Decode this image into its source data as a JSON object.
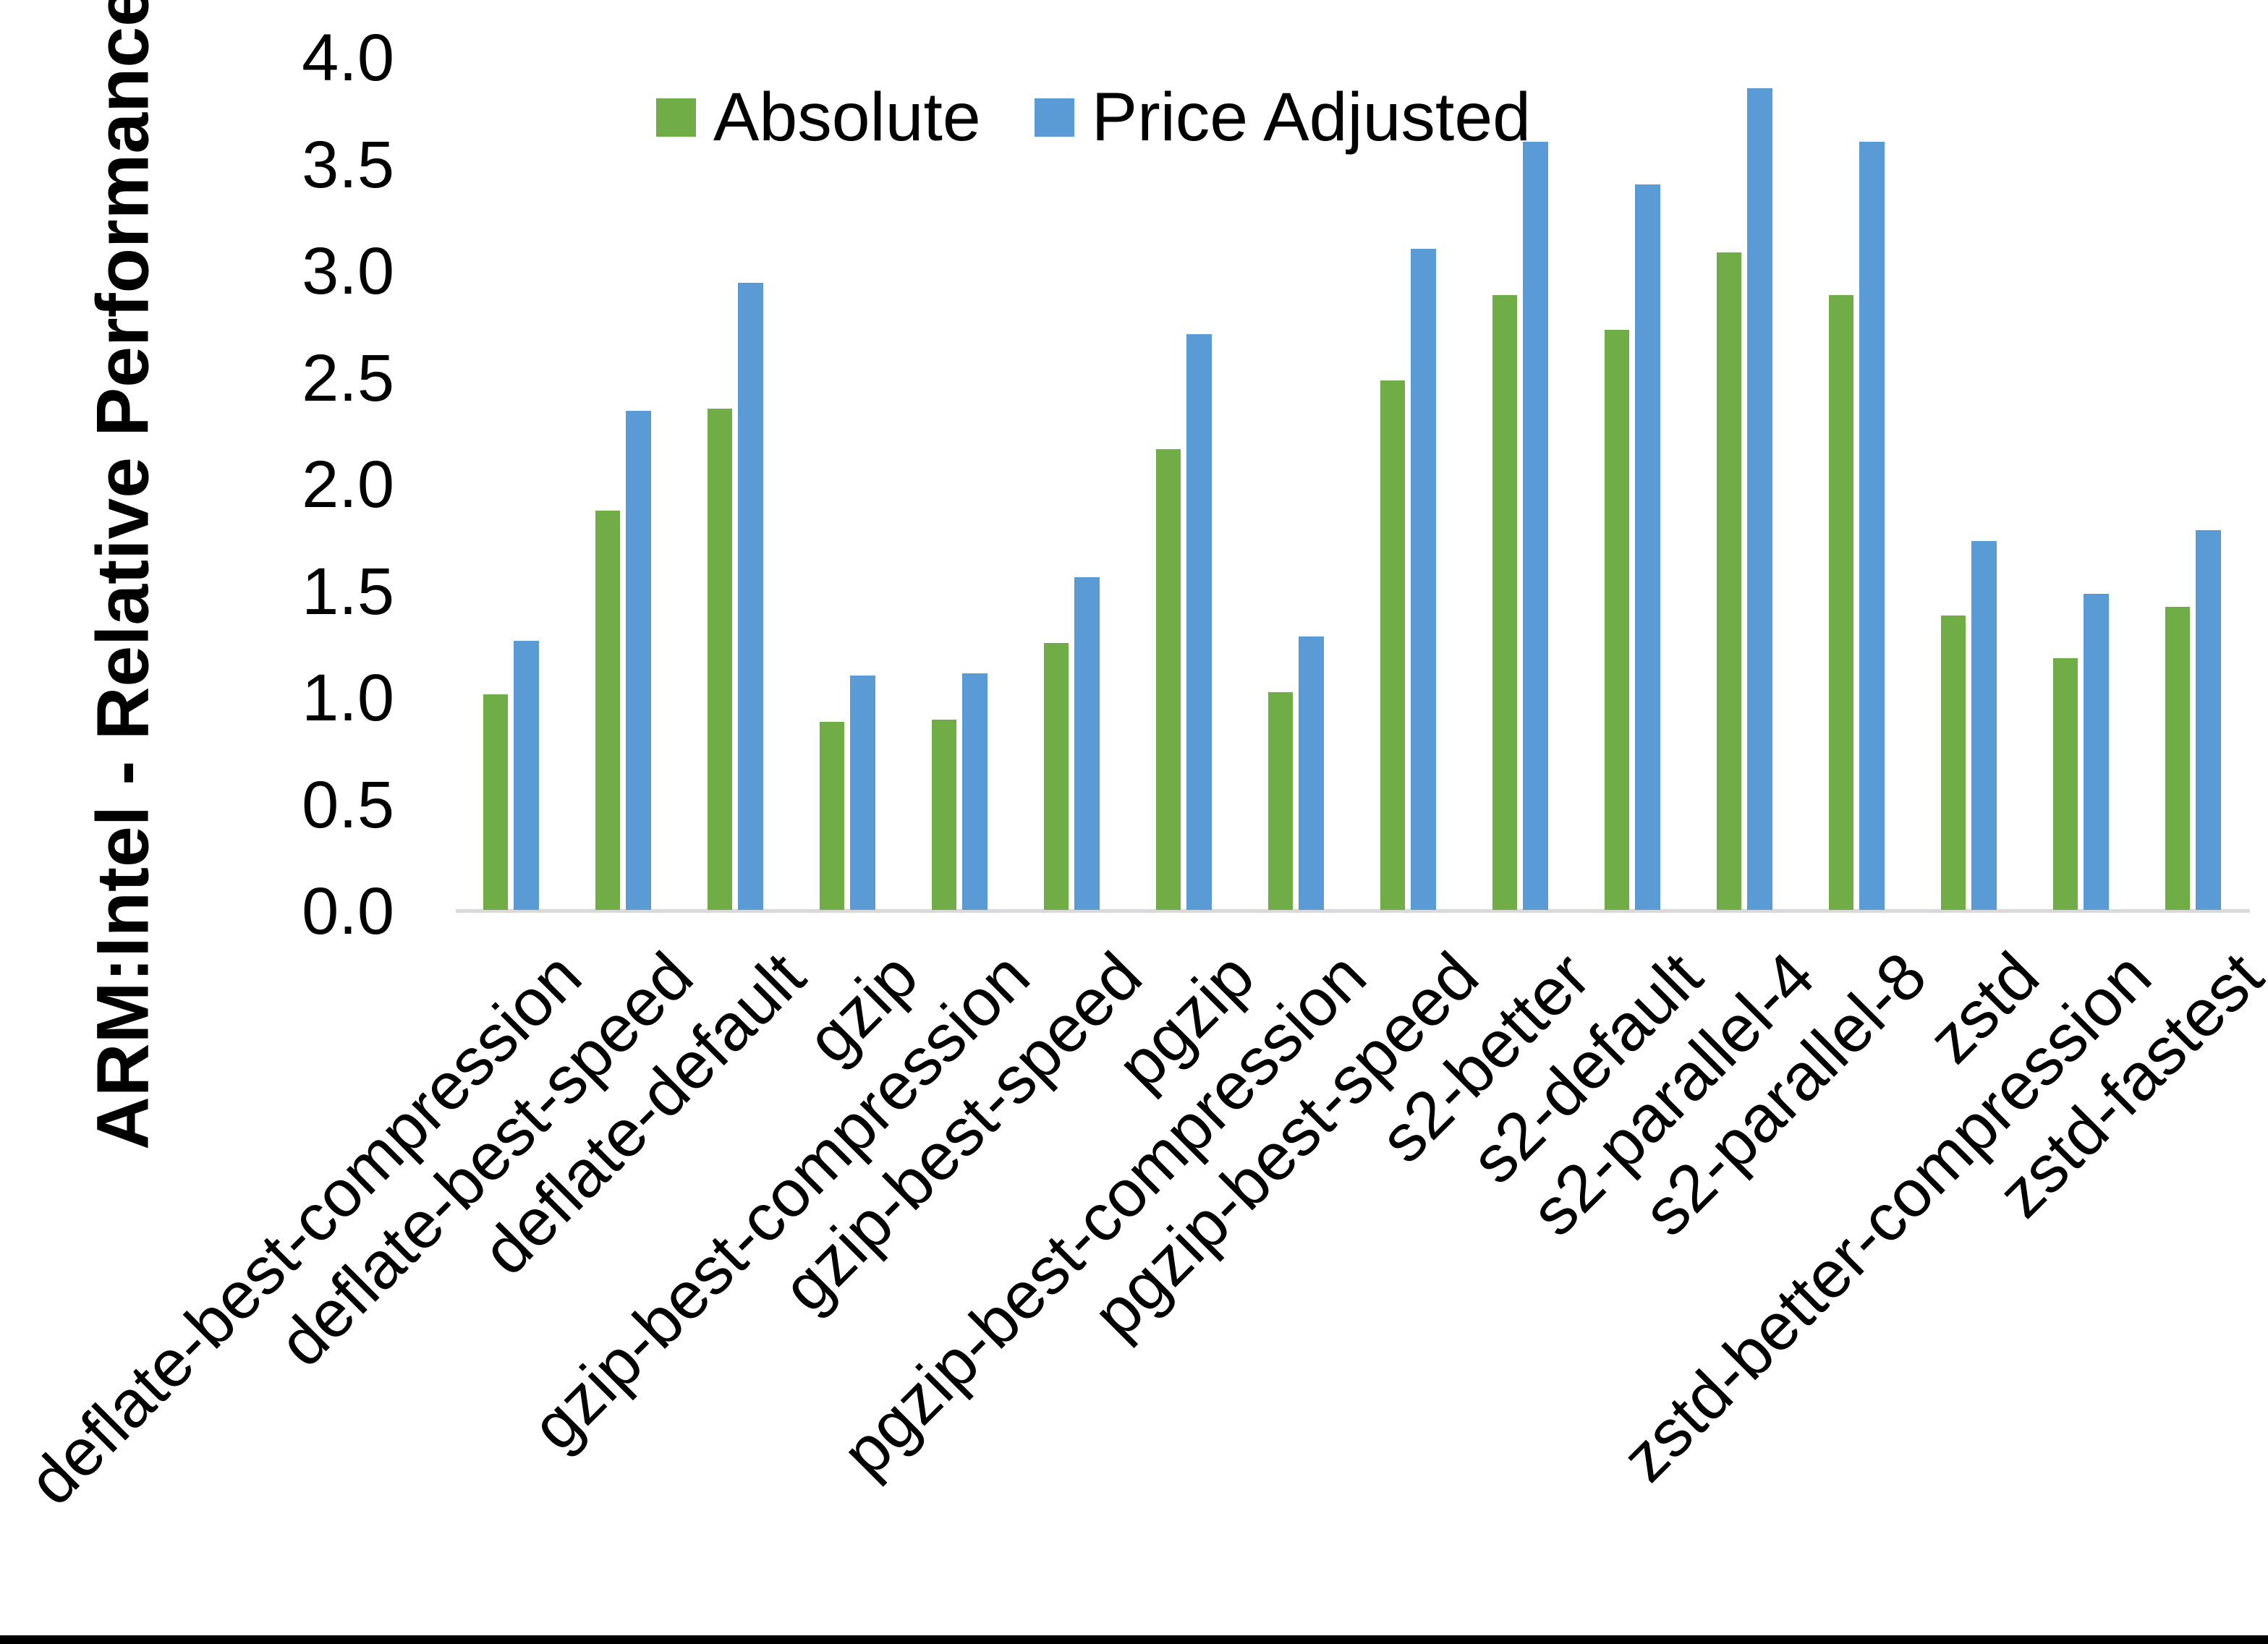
{
  "chart_data": {
    "type": "bar",
    "title": "",
    "xlabel": "",
    "ylabel": "ARM:Intel - Relative Performance",
    "ylim": [
      0.0,
      4.0
    ],
    "yticks": [
      "0.0",
      "0.5",
      "1.0",
      "1.5",
      "2.0",
      "2.5",
      "3.0",
      "3.5",
      "4.0"
    ],
    "grid": false,
    "legend_position": "top-center-inside",
    "categories": [
      "deflate-best-compression",
      "deflate-best-speed",
      "deflate-default",
      "gzip",
      "gzip-best-compression",
      "gzip-best-speed",
      "pgzip",
      "pgzip-best-compression",
      "pgzip-best-speed",
      "s2-better",
      "s2-default",
      "s2-parallel-4",
      "s2-parallel-8",
      "zstd",
      "zstd-better-compression",
      "zstd-fastest"
    ],
    "series": [
      {
        "name": "Absolute",
        "color": "#70AD47",
        "values": [
          1.01,
          1.87,
          2.35,
          0.88,
          0.89,
          1.25,
          2.16,
          1.02,
          2.48,
          2.88,
          2.72,
          3.08,
          2.88,
          1.38,
          1.18,
          1.42
        ]
      },
      {
        "name": "Price Adjusted",
        "color": "#5B9BD5",
        "values": [
          1.26,
          2.34,
          2.94,
          1.1,
          1.11,
          1.56,
          2.7,
          1.28,
          3.1,
          3.6,
          3.4,
          3.85,
          3.6,
          1.73,
          1.48,
          1.78
        ]
      }
    ],
    "colors": {
      "axis_line": "#D9D9D9",
      "text": "#000000",
      "background": "#FFFFFF",
      "bottom_border": "#000000"
    }
  }
}
